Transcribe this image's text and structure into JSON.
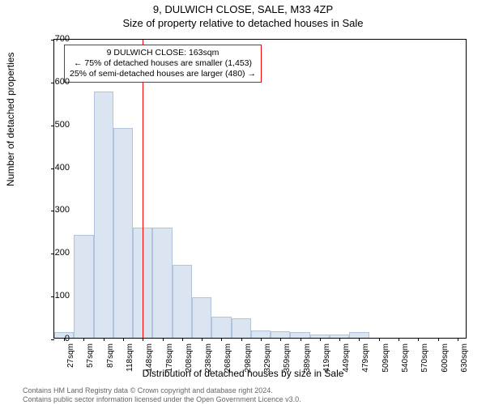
{
  "title": {
    "main": "9, DULWICH CLOSE, SALE, M33 4ZP",
    "sub": "Size of property relative to detached houses in Sale"
  },
  "chart": {
    "type": "histogram",
    "ylabel": "Number of detached properties",
    "xlabel": "Distribution of detached houses by size in Sale",
    "ylim": [
      0,
      700
    ],
    "ytick_step": 100,
    "yticks": [
      0,
      100,
      200,
      300,
      400,
      500,
      600,
      700
    ],
    "categories": [
      "27sqm",
      "57sqm",
      "87sqm",
      "118sqm",
      "148sqm",
      "178sqm",
      "208sqm",
      "238sqm",
      "268sqm",
      "298sqm",
      "329sqm",
      "359sqm",
      "389sqm",
      "419sqm",
      "449sqm",
      "479sqm",
      "509sqm",
      "540sqm",
      "570sqm",
      "600sqm",
      "630sqm"
    ],
    "values": [
      14,
      240,
      575,
      490,
      258,
      258,
      170,
      95,
      50,
      45,
      18,
      16,
      14,
      8,
      8,
      14,
      0,
      0,
      0,
      0,
      0
    ],
    "bar_fill": "#dbe5f1",
    "bar_stroke": "#b0c4de",
    "bar_width_ratio": 1.0,
    "background_color": "#ffffff",
    "axis_color": "#000000",
    "tick_fontsize": 11,
    "label_fontsize": 12,
    "ref_line": {
      "x_category_index": 4.5,
      "color": "#ff0000",
      "width": 1
    },
    "annotation": {
      "border_color": "#ff0000",
      "lines": [
        "9 DULWICH CLOSE: 163sqm",
        "← 75% of detached houses are smaller (1,453)",
        "25% of semi-detached houses are larger (480) →"
      ]
    }
  },
  "footer": {
    "line1": "Contains HM Land Registry data © Crown copyright and database right 2024.",
    "line2": "Contains public sector information licensed under the Open Government Licence v3.0."
  }
}
